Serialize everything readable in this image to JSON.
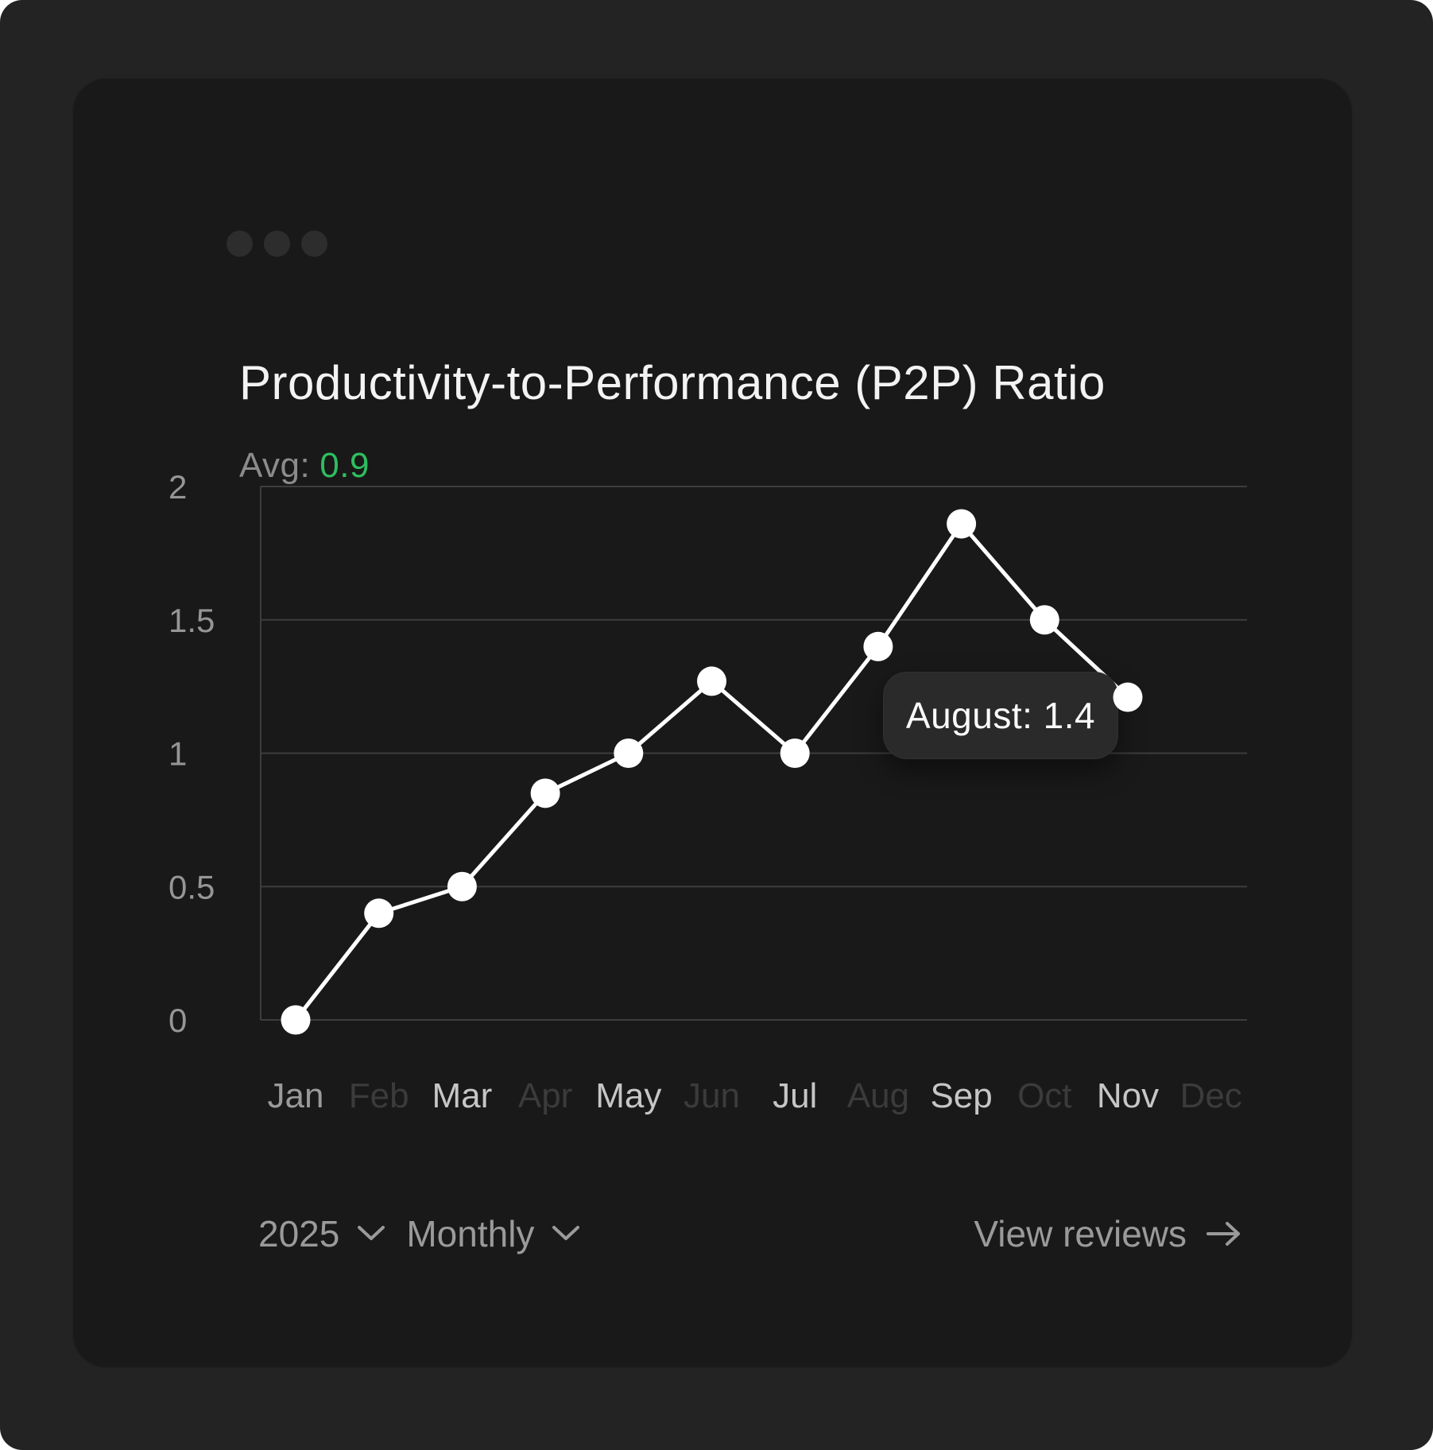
{
  "header": {
    "title": "Productivity-to-Performance (P2P) Ratio",
    "avg_label": "Avg:",
    "avg_value": "0.9"
  },
  "chart_data": {
    "type": "line",
    "title": "Productivity-to-Performance (P2P) Ratio",
    "categories": [
      "Jan",
      "Feb",
      "Mar",
      "Apr",
      "May",
      "Jun",
      "Jul",
      "Aug",
      "Sep",
      "Oct",
      "Nov",
      "Dec"
    ],
    "category_tones": [
      "medium",
      "dim",
      "bright",
      "dim",
      "bright",
      "dim",
      "bright",
      "dim",
      "bright",
      "dim",
      "bright",
      "dim"
    ],
    "series": [
      {
        "name": "P2P Ratio",
        "values": [
          0,
          0.4,
          0.5,
          0.85,
          1.0,
          1.27,
          1.0,
          1.4,
          1.86,
          1.5,
          1.21
        ]
      }
    ],
    "ylim": [
      0,
      2
    ],
    "yticks": [
      0,
      0.5,
      1,
      1.5,
      2
    ],
    "grid": true,
    "legend": "none",
    "tooltip": {
      "month": "August",
      "value": "1.4",
      "text": "August: 1.4"
    }
  },
  "footer": {
    "year": "2025",
    "period": "Monthly",
    "link_label": "View reviews"
  },
  "icons": {
    "year_dropdown": "chevron-down-icon",
    "period_dropdown": "chevron-down-icon",
    "view_reviews": "arrow-right-icon"
  },
  "colors": {
    "page_bg": "#232323",
    "card_bg": "#191919",
    "grid": "#3d3d3d",
    "axis_label": "#969696",
    "line": "#ffffff",
    "point": "#ffffff",
    "accent_green": "#2fbe5f",
    "tooltip_bg": "#2a2a2a",
    "footer_text": "#9a9a9a",
    "month_tones": {
      "bright": "#c6c6c6",
      "medium": "#9a9a9a",
      "dim": "#3b3b3b"
    }
  }
}
